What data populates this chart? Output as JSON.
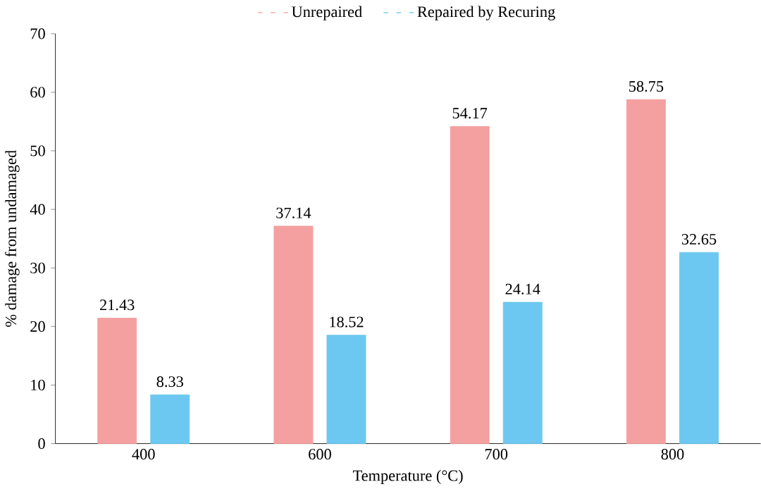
{
  "chart_data": {
    "type": "bar",
    "xlabel": "Temperature (°C)",
    "ylabel": "% damage from undamaged",
    "categories": [
      "400",
      "600",
      "700",
      "800"
    ],
    "series": [
      {
        "name": "Unrepaired",
        "color": "#f4a0a0",
        "values": [
          21.43,
          37.14,
          54.17,
          58.75
        ]
      },
      {
        "name": "Repaired by Recuring",
        "color": "#6cc8f0",
        "values": [
          8.33,
          18.52,
          24.14,
          32.65
        ]
      }
    ],
    "ylim": [
      0,
      70
    ],
    "yticks": [
      0,
      10,
      20,
      30,
      40,
      50,
      60,
      70
    ],
    "data_labels": true,
    "legend": "top",
    "grid": false
  }
}
